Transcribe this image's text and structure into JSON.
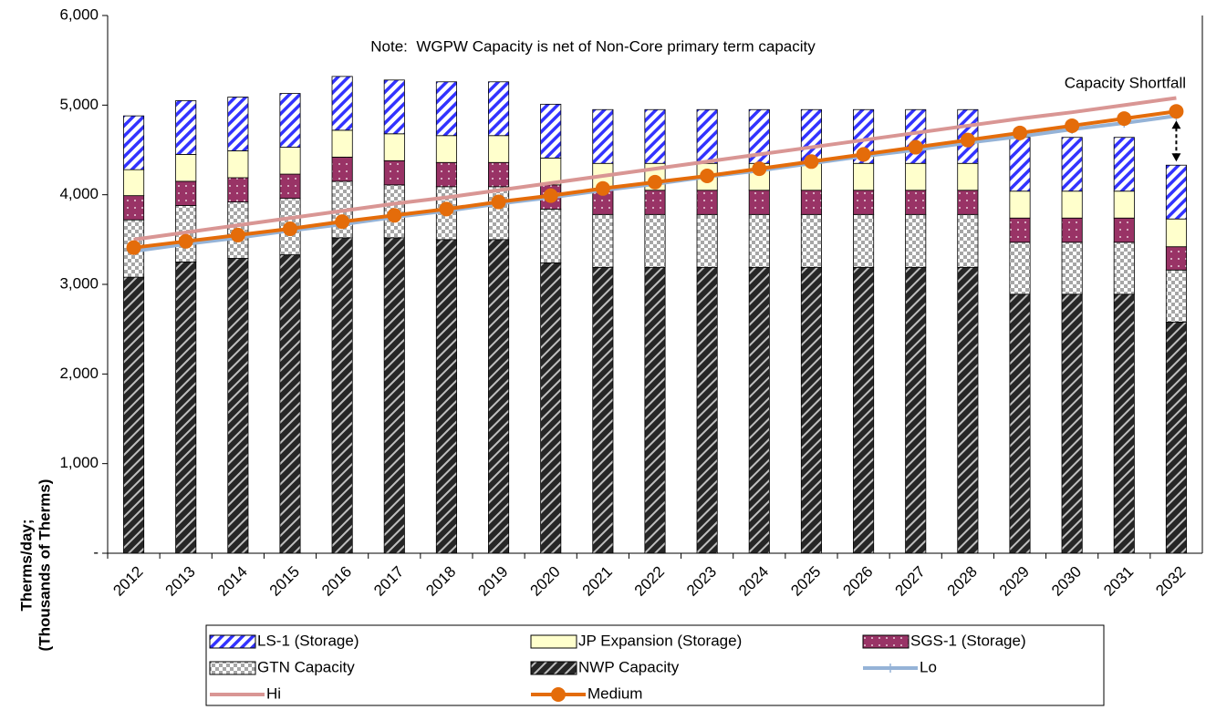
{
  "chart_data": {
    "type": "bar",
    "ylabel": [
      "Therms/day;",
      "(Thousands of Therms)"
    ],
    "note": "Note:  WGPW Capacity is net of Non-Core primary term capacity",
    "annotation": "Capacity Shortfall",
    "categories": [
      "2012",
      "2013",
      "2014",
      "2015",
      "2016",
      "2017",
      "2018",
      "2019",
      "2020",
      "2021",
      "2022",
      "2023",
      "2024",
      "2025",
      "2026",
      "2027",
      "2028",
      "2029",
      "2030",
      "2031",
      "2032"
    ],
    "ylim": [
      0,
      6000
    ],
    "yticks": [
      {
        "value": 0,
        "label": "-"
      },
      {
        "value": 1000,
        "label": "1,000"
      },
      {
        "value": 2000,
        "label": "2,000"
      },
      {
        "value": 3000,
        "label": "3,000"
      },
      {
        "value": 4000,
        "label": "4,000"
      },
      {
        "value": 5000,
        "label": "5,000"
      },
      {
        "value": 6000,
        "label": "6,000"
      }
    ],
    "grid": false,
    "series": [
      {
        "name": "LS-1 (Storage)",
        "type": "bar",
        "pattern": "stripes",
        "color": "#3333ff",
        "values": [
          600,
          600,
          600,
          600,
          600,
          600,
          600,
          600,
          600,
          600,
          600,
          600,
          600,
          600,
          600,
          600,
          600,
          600,
          600,
          600,
          600
        ]
      },
      {
        "name": "JP Expansion (Storage)",
        "type": "bar",
        "pattern": "solid",
        "color": "#ffffcc",
        "values": [
          290,
          300,
          300,
          300,
          300,
          300,
          300,
          300,
          300,
          300,
          300,
          300,
          300,
          300,
          300,
          300,
          300,
          300,
          300,
          300,
          310
        ]
      },
      {
        "name": "SGS-1 (Storage)",
        "type": "bar",
        "pattern": "dots",
        "color": "#993366",
        "values": [
          270,
          270,
          270,
          270,
          270,
          270,
          270,
          270,
          270,
          270,
          270,
          270,
          270,
          270,
          270,
          270,
          270,
          270,
          270,
          270,
          260
        ]
      },
      {
        "name": "GTN Capacity",
        "type": "bar",
        "pattern": "checker",
        "color": "#a6a6a6",
        "values": [
          640,
          630,
          630,
          630,
          630,
          590,
          590,
          590,
          600,
          590,
          590,
          590,
          590,
          590,
          590,
          590,
          590,
          580,
          580,
          580,
          580
        ]
      },
      {
        "name": "NWP Capacity",
        "type": "bar",
        "pattern": "darkstripes",
        "color": "#262626",
        "values": [
          3080,
          3250,
          3290,
          3330,
          3520,
          3520,
          3500,
          3500,
          3240,
          3190,
          3190,
          3190,
          3190,
          3190,
          3190,
          3190,
          3190,
          2890,
          2890,
          2890,
          2580
        ]
      },
      {
        "name": "Lo",
        "type": "line",
        "marker": "plus",
        "color": "#95b3d7",
        "values": [
          3370,
          3450,
          3520,
          3600,
          3670,
          3750,
          3820,
          3900,
          3970,
          4050,
          4120,
          4200,
          4270,
          4350,
          4430,
          4500,
          4580,
          4650,
          4730,
          4800,
          4880
        ]
      },
      {
        "name": "Hi",
        "type": "line",
        "marker": "none",
        "color": "#d99694",
        "values": [
          3500,
          3580,
          3660,
          3740,
          3820,
          3900,
          3970,
          4050,
          4130,
          4210,
          4290,
          4370,
          4450,
          4530,
          4610,
          4690,
          4770,
          4850,
          4920,
          5000,
          5080
        ]
      },
      {
        "name": "Medium",
        "type": "line",
        "marker": "circle",
        "color": "#e46c0a",
        "values": [
          3410,
          3480,
          3550,
          3620,
          3700,
          3770,
          3840,
          3920,
          3990,
          4070,
          4140,
          4210,
          4290,
          4370,
          4450,
          4530,
          4610,
          4690,
          4770,
          4850,
          4930
        ]
      }
    ]
  }
}
